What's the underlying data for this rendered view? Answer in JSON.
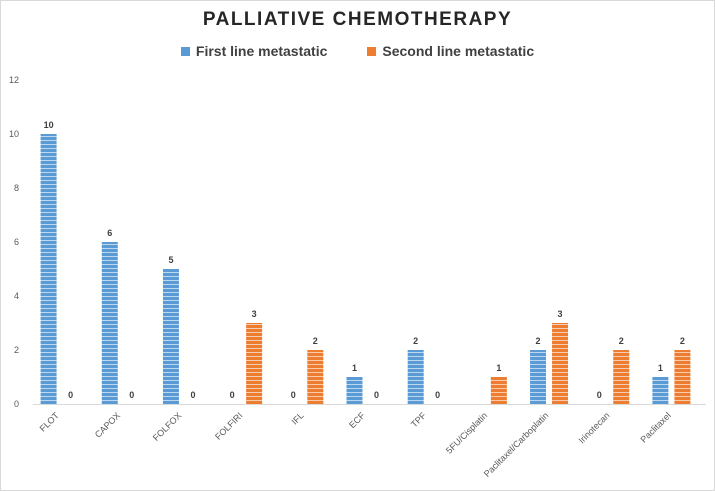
{
  "chart_data": {
    "type": "bar",
    "title": "PALLIATIVE CHEMOTHERAPY",
    "xlabel": "",
    "ylabel": "",
    "categories": [
      "FLOT",
      "CAPOX",
      "FOLFOX",
      "FOLFIRI",
      "IFL",
      "ECF",
      "TPF",
      "5FU/Cisplatin",
      "Paclitaxel/Carboplatin",
      "Irinotecan",
      "Paclitaxel"
    ],
    "series": [
      {
        "name": "First line metastatic",
        "color": "#5b9bd5",
        "values": [
          10,
          6,
          5,
          0,
          0,
          1,
          2,
          null,
          2,
          0,
          1
        ]
      },
      {
        "name": "Second line metastatic",
        "color": "#ed7d31",
        "values": [
          0,
          0,
          0,
          3,
          2,
          0,
          0,
          1,
          3,
          2,
          2
        ]
      }
    ],
    "ylim": [
      0,
      12
    ],
    "yticks": [
      0,
      2,
      4,
      6,
      8,
      10,
      12
    ],
    "grid": false,
    "legend_position": "top",
    "data_labels": true
  }
}
